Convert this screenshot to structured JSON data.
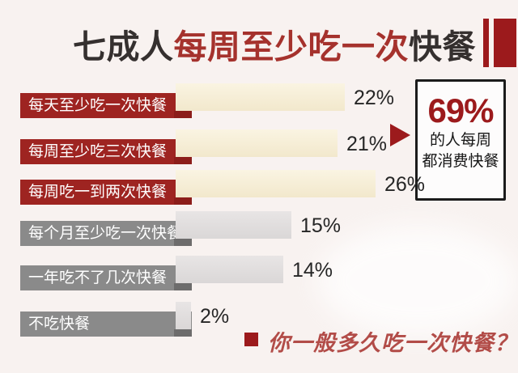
{
  "header": {
    "title_segments": [
      {
        "text": "七成人",
        "emphasis": false
      },
      {
        "text": "每周至少吃一次",
        "emphasis": true
      },
      {
        "text": "快餐",
        "emphasis": false
      }
    ]
  },
  "chart_data": {
    "type": "bar",
    "orientation": "horizontal",
    "unit": "%",
    "categories": [
      "每天至少吃一次快餐",
      "每周至少吃三次快餐",
      "每周吃一到两次快餐",
      "每个月至少吃一次快餐",
      "一年吃不了几次快餐",
      "不吃快餐"
    ],
    "values": [
      22,
      21,
      26,
      15,
      14,
      2
    ],
    "value_labels": [
      "22%",
      "21%",
      "26%",
      "15%",
      "14%",
      "2%"
    ],
    "groups": [
      "weekly",
      "weekly",
      "weekly",
      "other",
      "other",
      "other"
    ],
    "xlim": [
      0,
      30
    ],
    "grid": false,
    "legend": "none"
  },
  "callout": {
    "value": "69%",
    "line1": "的人每周",
    "line2": "都消费快餐"
  },
  "footer": {
    "question": "你一般多久吃一次快餐？"
  },
  "colors": {
    "background": "#f8f2f0",
    "title_dark": "#35302f",
    "title_red": "#a5322d",
    "label_red": "#9e2421",
    "label_gray": "#8a8a8a",
    "bar_cream": "#f2e8cc",
    "bar_gray": "#dad7d7",
    "accent_dark_red": "#9c1a1c",
    "question_red": "#b24c48"
  }
}
